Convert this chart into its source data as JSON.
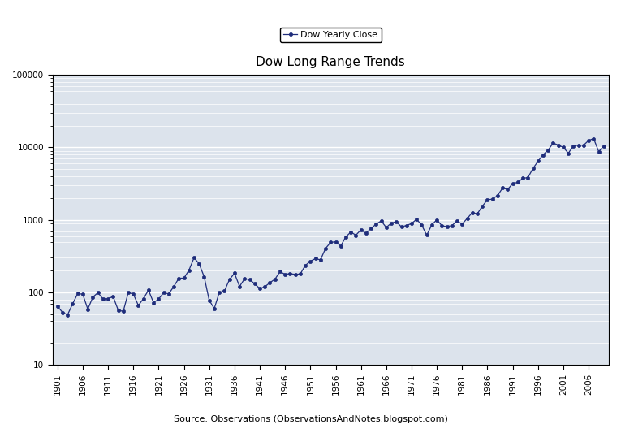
{
  "title": "Dow Long Range Trends",
  "legend_label": "Dow Yearly Close",
  "source_text": "Source: Observations (ObservationsAndNotes.blogspot.com)",
  "line_color": "#1F2D7B",
  "marker": "o",
  "marker_size": 3.0,
  "fig_bg_color": "#ffffff",
  "plot_bg_color": "#dce3ec",
  "years": [
    1901,
    1902,
    1903,
    1904,
    1905,
    1906,
    1907,
    1908,
    1909,
    1910,
    1911,
    1912,
    1913,
    1914,
    1915,
    1916,
    1917,
    1918,
    1919,
    1920,
    1921,
    1922,
    1923,
    1924,
    1925,
    1926,
    1927,
    1928,
    1929,
    1930,
    1931,
    1932,
    1933,
    1934,
    1935,
    1936,
    1937,
    1938,
    1939,
    1940,
    1941,
    1942,
    1943,
    1944,
    1945,
    1946,
    1947,
    1948,
    1949,
    1950,
    1951,
    1952,
    1953,
    1954,
    1955,
    1956,
    1957,
    1958,
    1959,
    1960,
    1961,
    1962,
    1963,
    1964,
    1965,
    1966,
    1967,
    1968,
    1969,
    1970,
    1971,
    1972,
    1973,
    1974,
    1975,
    1976,
    1977,
    1978,
    1979,
    1980,
    1981,
    1982,
    1983,
    1984,
    1985,
    1986,
    1987,
    1988,
    1989,
    1990,
    1991,
    1992,
    1993,
    1994,
    1995,
    1996,
    1997,
    1998,
    1999,
    2000,
    2001,
    2002,
    2003,
    2004,
    2005,
    2006,
    2007,
    2008,
    2009
  ],
  "values": [
    64.56,
    53.0,
    49.11,
    69.61,
    96.2,
    94.35,
    58.75,
    86.15,
    99.05,
    81.36,
    81.68,
    87.87,
    57.11,
    54.58,
    99.15,
    95.0,
    65.95,
    82.2,
    107.23,
    71.95,
    81.1,
    98.73,
    95.52,
    120.51,
    156.66,
    157.17,
    202.4,
    300.0,
    248.48,
    164.58,
    77.9,
    59.93,
    99.9,
    104.04,
    150.24,
    183.26,
    120.85,
    154.45,
    150.24,
    131.13,
    112.77,
    119.71,
    135.89,
    152.32,
    192.91,
    177.47,
    181.16,
    177.3,
    179.48,
    235.41,
    269.23,
    291.9,
    280.9,
    404.39,
    488.4,
    499.47,
    435.69,
    583.65,
    679.36,
    615.89,
    731.14,
    652.1,
    762.95,
    874.12,
    969.26,
    785.69,
    905.11,
    943.75,
    800.36,
    838.92,
    890.2,
    1020.02,
    850.86,
    616.24,
    852.41,
    1004.65,
    831.17,
    805.01,
    838.74,
    963.99,
    875.0,
    1046.54,
    1258.64,
    1211.57,
    1546.67,
    1895.95,
    1938.83,
    2168.57,
    2753.2,
    2633.66,
    3168.83,
    3301.11,
    3754.09,
    3834.44,
    5117.12,
    6448.26,
    7908.24,
    9181.43,
    11497.12,
    10786.85,
    10021.5,
    8341.63,
    10453.92,
    10783.01,
    10717.5,
    12463.15,
    13264.82,
    8776.39,
    10428.05
  ],
  "yticks": [
    10,
    100,
    1000,
    10000,
    100000
  ],
  "ytick_labels": [
    "10",
    "100",
    "1000",
    "10000",
    "100000"
  ],
  "xtick_start": 1901,
  "xtick_end": 2009,
  "xtick_step": 5,
  "xlim": [
    1900,
    2010
  ],
  "ylim": [
    10,
    100000
  ]
}
